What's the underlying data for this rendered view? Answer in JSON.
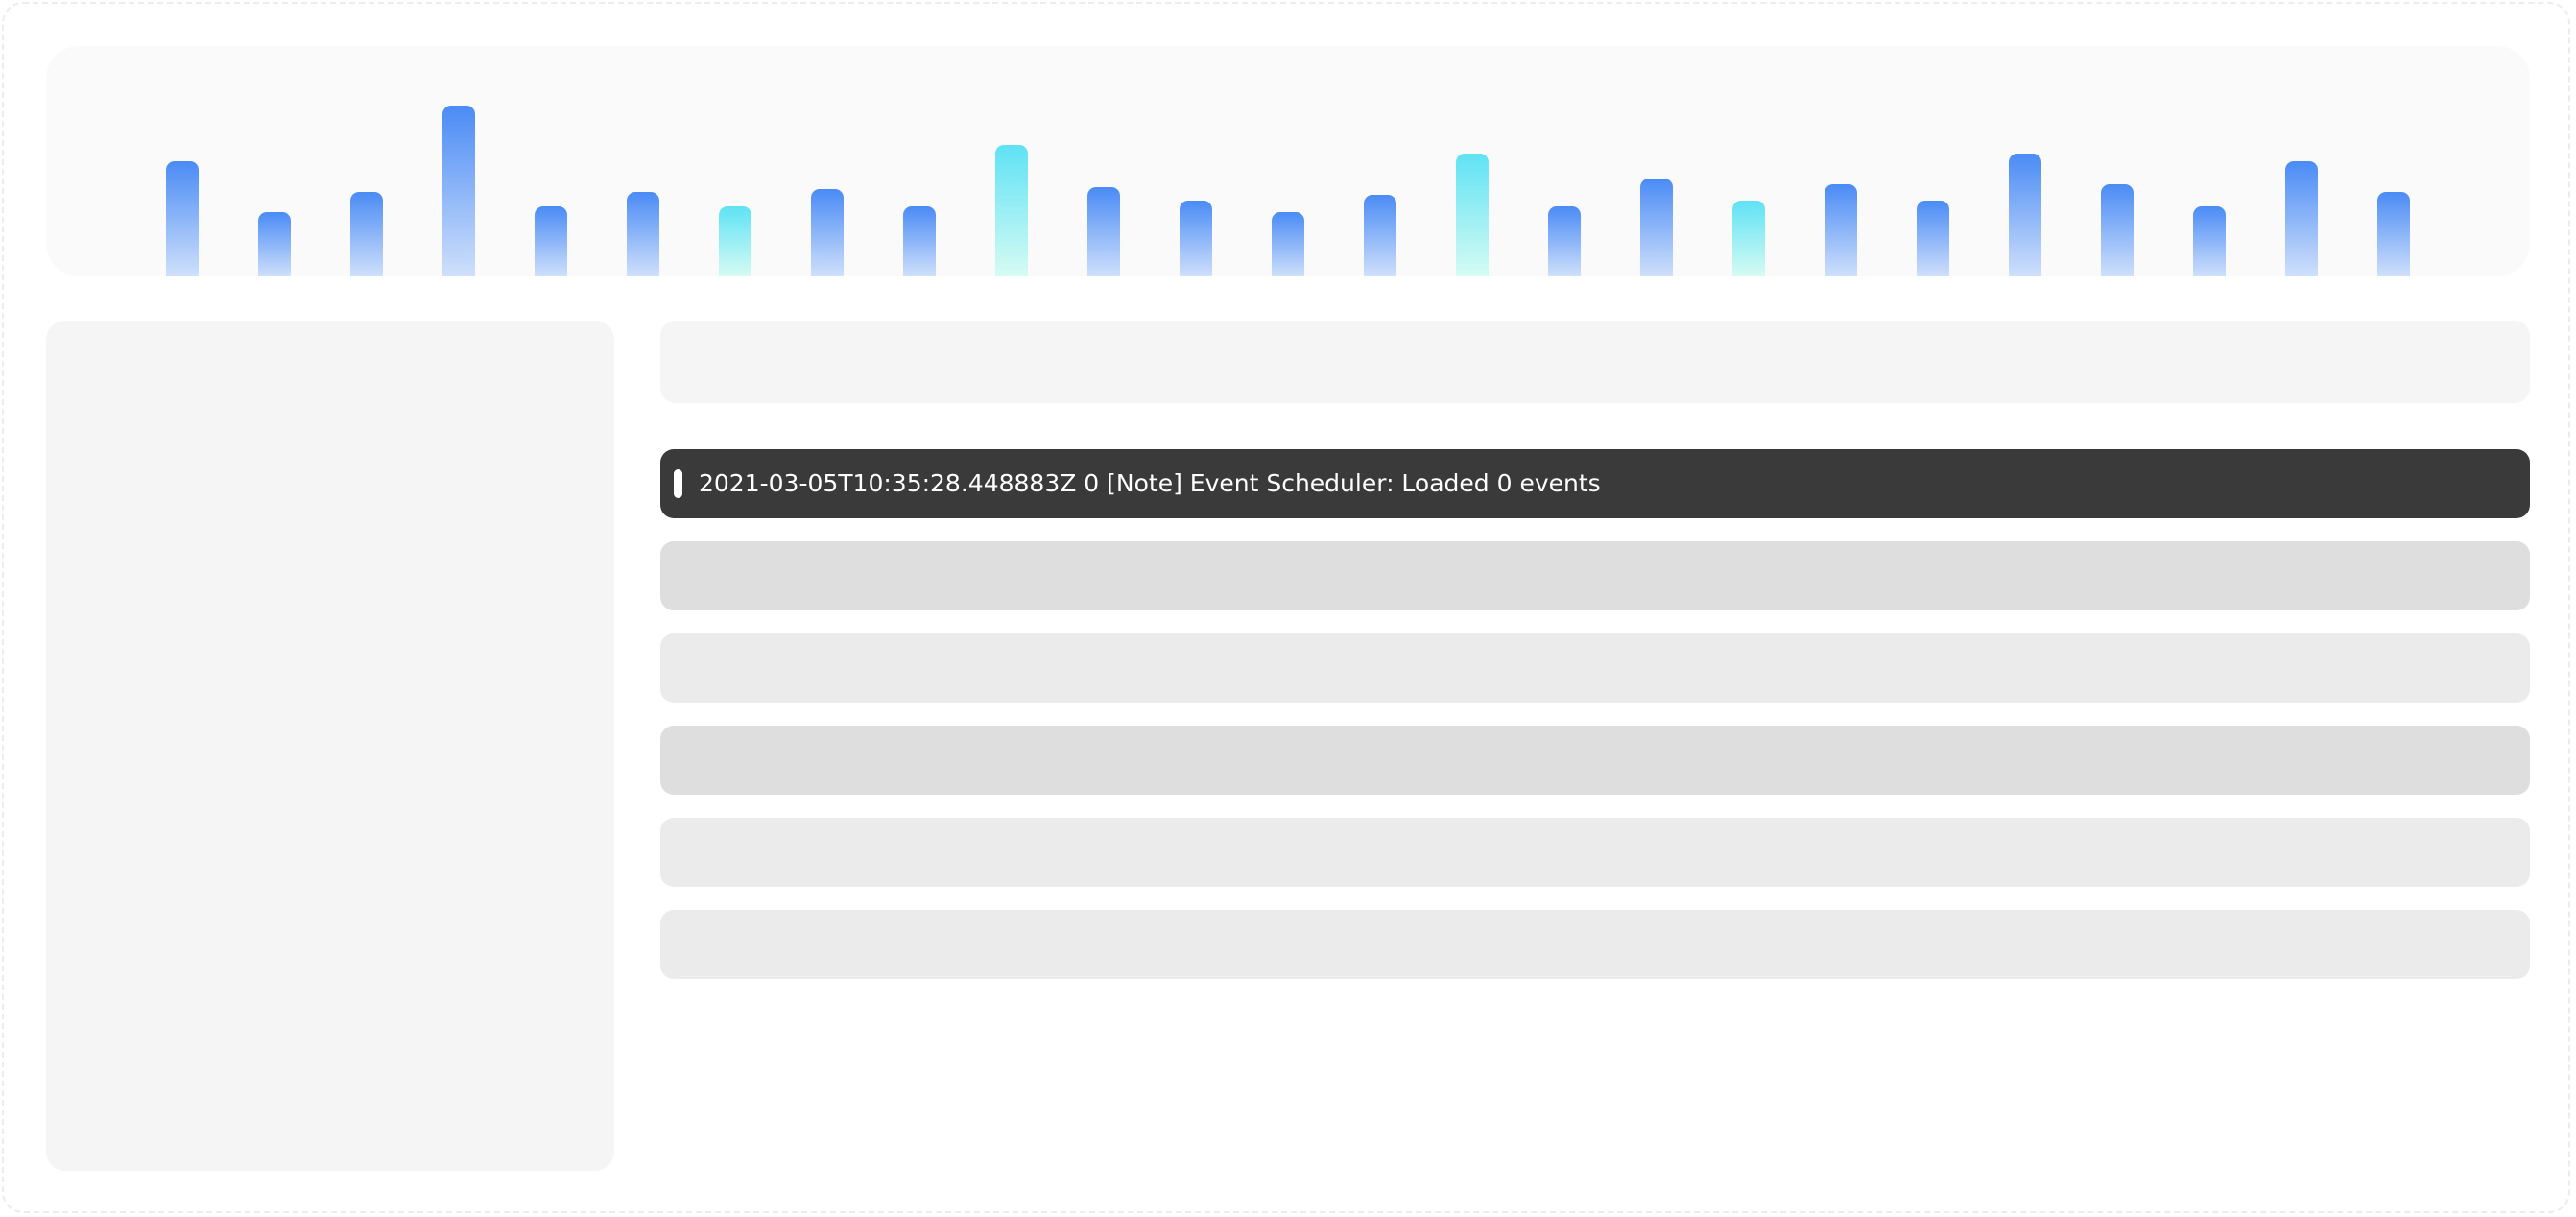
{
  "colors": {
    "bar_blue_top": "#4a8bf5",
    "bar_blue_bottom": "#cfe0fb",
    "bar_cyan_top": "#5fe2f4",
    "bar_cyan_bottom": "#d6fbf3",
    "active_row_bg": "#3a3a3a",
    "active_row_text": "#ffffff"
  },
  "histogram": {
    "levels": [
      0.41,
      0.23,
      0.3,
      0.61,
      0.25,
      0.3,
      0.25,
      0.31,
      0.25,
      0.47,
      0.32,
      0.27,
      0.23,
      0.29,
      0.44,
      0.25,
      0.35,
      0.27,
      0.33,
      0.27,
      0.44,
      0.33,
      0.25,
      0.41,
      0.3
    ],
    "highlighted": [
      6,
      9,
      14,
      17
    ]
  },
  "log": {
    "rows": [
      {
        "text": "2021-03-05T10:35:28.448883Z 0 [Note] Event Scheduler: Loaded 0 events",
        "state": "active"
      },
      {
        "text": "",
        "state": "dark"
      },
      {
        "text": "",
        "state": "light"
      },
      {
        "text": "",
        "state": "dark"
      },
      {
        "text": "",
        "state": "light"
      },
      {
        "text": "",
        "state": "light"
      }
    ]
  }
}
